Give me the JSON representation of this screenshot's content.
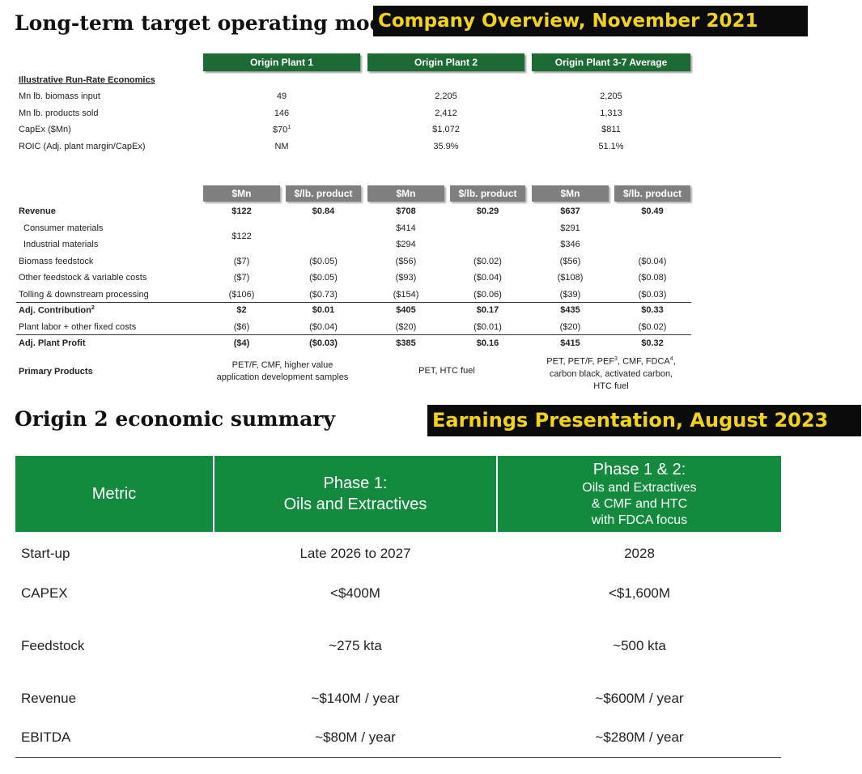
{
  "top_title": "Long-term target operating model",
  "top_banner": "Company Overview, November 2021",
  "plants": [
    "Origin Plant 1",
    "Origin Plant 2",
    "Origin Plant 3-7 Average"
  ],
  "run_rate": {
    "heading": "Illustrative Run-Rate Economics",
    "rows": [
      {
        "label": "Mn lb. biomass input",
        "values": [
          "49",
          "2,205",
          "2,205"
        ]
      },
      {
        "label": "Mn lb. products sold",
        "values": [
          "146",
          "2,412",
          "1,313"
        ]
      },
      {
        "label": "CapEx ($Mn)",
        "values": [
          "$70",
          "$1,072",
          "$811"
        ],
        "footnote": "1"
      },
      {
        "label": "ROIC (Adj. plant margin/CapEx)",
        "values": [
          "NM",
          "35.9%",
          "51.1%"
        ]
      }
    ]
  },
  "sub_headers": [
    "$Mn",
    "$/lb. product",
    "$Mn",
    "$/lb. product",
    "$Mn",
    "$/lb. product"
  ],
  "pnl": {
    "revenue": {
      "label": "Revenue",
      "values": [
        "$122",
        "$0.84",
        "$708",
        "$0.29",
        "$637",
        "$0.49"
      ]
    },
    "consumer": {
      "label": "Consumer materials",
      "p2": "$414",
      "p3": "$291"
    },
    "industrial": {
      "label": "Industrial materials",
      "p2": "$294",
      "p3": "$346"
    },
    "p1_materials": "$122",
    "biomass": {
      "label": "Biomass feedstock",
      "values": [
        "($7)",
        "($0.05)",
        "($56)",
        "($0.02)",
        "($56)",
        "($0.04)"
      ]
    },
    "other_feed": {
      "label": "Other feedstock & variable costs",
      "values": [
        "($7)",
        "($0.05)",
        "($93)",
        "($0.04)",
        "($108)",
        "($0.08)"
      ]
    },
    "tolling": {
      "label": "Tolling & downstream processing",
      "values": [
        "($106)",
        "($0.73)",
        "($154)",
        "($0.06)",
        "($39)",
        "($0.03)"
      ]
    },
    "contribution": {
      "label": "Adj. Contribution",
      "sup": "2",
      "values": [
        "$2",
        "$0.01",
        "$405",
        "$0.17",
        "$435",
        "$0.33"
      ]
    },
    "labor": {
      "label": "Plant labor + other fixed costs",
      "values": [
        "($6)",
        "($0.04)",
        "($20)",
        "($0.01)",
        "($20)",
        "($0.02)"
      ]
    },
    "profit": {
      "label": "Adj. Plant Profit",
      "values": [
        "($4)",
        "($0.03)",
        "$385",
        "$0.16",
        "$415",
        "$0.32"
      ]
    },
    "products": {
      "label": "Primary Products",
      "p1_line1": "PET/F, CMF, higher value",
      "p1_line2": "application development samples",
      "p2": "PET, HTC fuel",
      "p3_line1a": "PET, PET/F, PEF",
      "p3_sup1": "3",
      "p3_line1b": ", CMF, FDCA",
      "p3_sup2": "4",
      "p3_line1c": ",",
      "p3_line2": "carbon black, activated carbon,",
      "p3_line3": "HTC fuel"
    }
  },
  "o2": {
    "title": "Origin 2 economic summary",
    "banner": "Earnings Presentation, August 2023",
    "headers": {
      "metric": "Metric",
      "phase1_line1": "Phase 1:",
      "phase1_line2": "Oils and Extractives",
      "phase12_line1": "Phase 1 & 2:",
      "phase12_line2": "Oils and Extractives",
      "phase12_line3": "& CMF and HTC",
      "phase12_line4": "with FDCA focus"
    },
    "rows": [
      {
        "metric": "Start-up",
        "phase1": "Late 2026 to 2027",
        "phase12": "2028"
      },
      {
        "metric": "CAPEX",
        "phase1": "<$400M",
        "phase12": "<$1,600M"
      },
      {
        "metric": "Feedstock",
        "phase1": "~275 kta",
        "phase12": "~500 kta"
      },
      {
        "metric": "Revenue",
        "phase1": "~$140M / year",
        "phase12": "~$600M / year"
      },
      {
        "metric": "EBITDA",
        "phase1": "~$80M / year",
        "phase12": "~$280M / year"
      }
    ]
  }
}
